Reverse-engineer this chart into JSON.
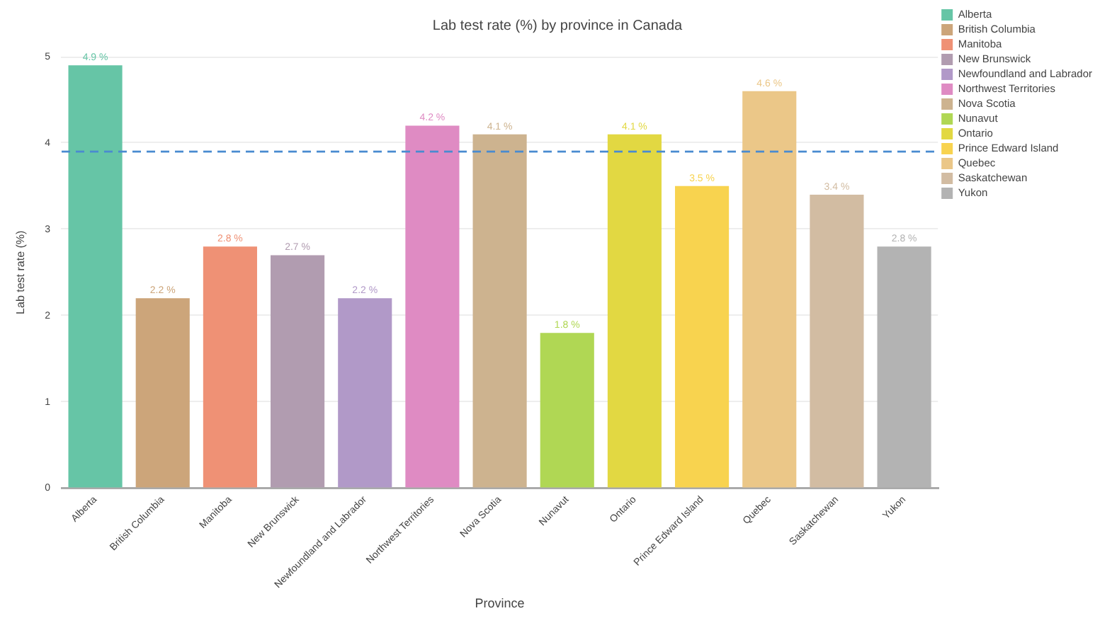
{
  "chart_data": {
    "type": "bar",
    "title": "Lab test rate (%) by province in Canada",
    "xlabel": "Province",
    "ylabel": "Lab test rate (%)",
    "categories": [
      "Alberta",
      "British Columbia",
      "Manitoba",
      "New Brunswick",
      "Newfoundland and Labrador",
      "Northwest Territories",
      "Nova Scotia",
      "Nunavut",
      "Ontario",
      "Prince Edward Island",
      "Quebec",
      "Saskatchewan",
      "Yukon"
    ],
    "series": [
      {
        "name": "Alberta",
        "color": "#66c5a6",
        "values": [
          4.9,
          null,
          null,
          null,
          null,
          null,
          null,
          null,
          null,
          null,
          null,
          null,
          null
        ],
        "value_labels": [
          "4.9 %",
          null,
          null,
          null,
          null,
          null,
          null,
          null,
          null,
          null,
          null,
          null,
          null
        ]
      },
      {
        "name": "British Columbia",
        "color": "#cca57a",
        "values": [
          null,
          2.2,
          null,
          null,
          null,
          null,
          null,
          null,
          null,
          null,
          null,
          null,
          null
        ],
        "value_labels": [
          null,
          "2.2 %",
          null,
          null,
          null,
          null,
          null,
          null,
          null,
          null,
          null,
          null,
          null
        ]
      },
      {
        "name": "Manitoba",
        "color": "#ef9175",
        "values": [
          null,
          null,
          2.8,
          null,
          null,
          null,
          null,
          null,
          null,
          null,
          null,
          null,
          null
        ],
        "value_labels": [
          null,
          null,
          "2.8 %",
          null,
          null,
          null,
          null,
          null,
          null,
          null,
          null,
          null,
          null
        ]
      },
      {
        "name": "New Brunswick",
        "color": "#b19cb0",
        "values": [
          null,
          null,
          null,
          2.7,
          null,
          null,
          null,
          null,
          null,
          null,
          null,
          null,
          null
        ],
        "value_labels": [
          null,
          null,
          null,
          "2.7 %",
          null,
          null,
          null,
          null,
          null,
          null,
          null,
          null,
          null
        ]
      },
      {
        "name": "Newfoundland and Labrador",
        "color": "#b199c8",
        "values": [
          null,
          null,
          null,
          null,
          2.2,
          null,
          null,
          null,
          null,
          null,
          null,
          null,
          null
        ],
        "value_labels": [
          null,
          null,
          null,
          null,
          "2.2 %",
          null,
          null,
          null,
          null,
          null,
          null,
          null,
          null
        ]
      },
      {
        "name": "Northwest Territories",
        "color": "#df8bc3",
        "values": [
          null,
          null,
          null,
          null,
          null,
          4.2,
          null,
          null,
          null,
          null,
          null,
          null,
          null
        ],
        "value_labels": [
          null,
          null,
          null,
          null,
          null,
          "4.2 %",
          null,
          null,
          null,
          null,
          null,
          null,
          null
        ]
      },
      {
        "name": "Nova Scotia",
        "color": "#cdb38f",
        "values": [
          null,
          null,
          null,
          null,
          null,
          null,
          4.1,
          null,
          null,
          null,
          null,
          null,
          null
        ],
        "value_labels": [
          null,
          null,
          null,
          null,
          null,
          null,
          "4.1 %",
          null,
          null,
          null,
          null,
          null,
          null
        ]
      },
      {
        "name": "Nunavut",
        "color": "#b0d754",
        "values": [
          null,
          null,
          null,
          null,
          null,
          null,
          null,
          1.8,
          null,
          null,
          null,
          null,
          null
        ],
        "value_labels": [
          null,
          null,
          null,
          null,
          null,
          null,
          null,
          "1.8 %",
          null,
          null,
          null,
          null,
          null
        ]
      },
      {
        "name": "Ontario",
        "color": "#e2d842",
        "values": [
          null,
          null,
          null,
          null,
          null,
          null,
          null,
          null,
          4.1,
          null,
          null,
          null,
          null
        ],
        "value_labels": [
          null,
          null,
          null,
          null,
          null,
          null,
          null,
          null,
          "4.1 %",
          null,
          null,
          null,
          null
        ]
      },
      {
        "name": "Prince Edward Island",
        "color": "#f8d34f",
        "values": [
          null,
          null,
          null,
          null,
          null,
          null,
          null,
          null,
          null,
          3.5,
          null,
          null,
          null
        ],
        "value_labels": [
          null,
          null,
          null,
          null,
          null,
          null,
          null,
          null,
          null,
          "3.5 %",
          null,
          null,
          null
        ]
      },
      {
        "name": "Quebec",
        "color": "#ebc788",
        "values": [
          null,
          null,
          null,
          null,
          null,
          null,
          null,
          null,
          null,
          null,
          4.6,
          null,
          null
        ],
        "value_labels": [
          null,
          null,
          null,
          null,
          null,
          null,
          null,
          null,
          null,
          null,
          "4.6 %",
          null,
          null
        ]
      },
      {
        "name": "Saskatchewan",
        "color": "#d2bca2",
        "values": [
          null,
          null,
          null,
          null,
          null,
          null,
          null,
          null,
          null,
          null,
          null,
          3.4,
          null
        ],
        "value_labels": [
          null,
          null,
          null,
          null,
          null,
          null,
          null,
          null,
          null,
          null,
          null,
          "3.4 %",
          null
        ]
      },
      {
        "name": "Yukon",
        "color": "#b3b3b3",
        "values": [
          null,
          null,
          null,
          null,
          null,
          null,
          null,
          null,
          null,
          null,
          null,
          null,
          2.8
        ],
        "value_labels": [
          null,
          null,
          null,
          null,
          null,
          null,
          null,
          null,
          null,
          null,
          null,
          null,
          "2.8 %"
        ]
      }
    ],
    "ylim": [
      0,
      5
    ],
    "yticks": [
      0,
      1,
      2,
      3,
      4,
      5
    ],
    "grid": "y",
    "legend": "top right",
    "ref_lines": [
      {
        "axis": "y",
        "value": 3.9,
        "color": "#4a8bd0",
        "line_style": "dashed"
      }
    ]
  }
}
